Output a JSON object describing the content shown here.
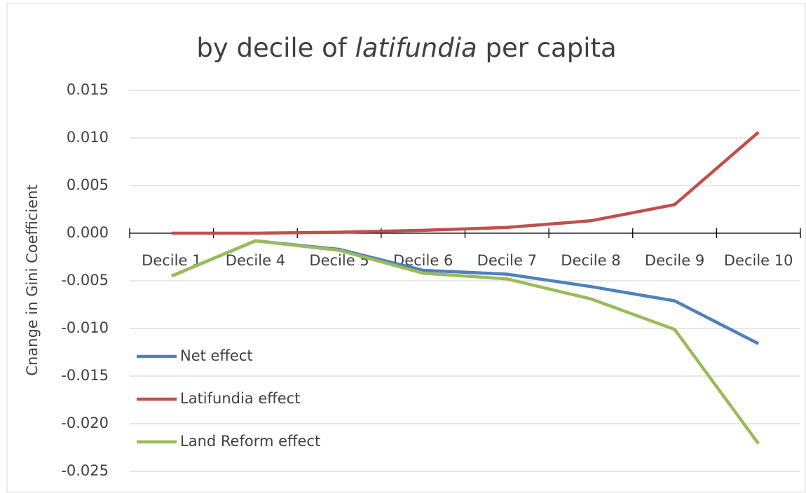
{
  "chart_data": {
    "type": "line",
    "title": [
      "by decile of ",
      "latifundia",
      " per capita"
    ],
    "y_label": "Cnange in Gini Coefficient",
    "categories": [
      "Decile 1",
      "Decile 4",
      "Decile 5",
      "Decile 6",
      "Decile 7",
      "Decile 8",
      "Decile 9",
      "Decile 10"
    ],
    "series": [
      {
        "name": "Net effect",
        "color": "#4f81bd",
        "values": [
          -0.0045,
          -0.0008,
          -0.0017,
          -0.0039,
          -0.0043,
          -0.0056,
          -0.0071,
          -0.0116
        ]
      },
      {
        "name": "Latifundia effect",
        "color": "#c0504d",
        "values": [
          0,
          0,
          0.0001,
          0.0003,
          0.0006,
          0.0013,
          0.003,
          0.0106
        ]
      },
      {
        "name": "Land Reform effect",
        "color": "#9bbb59",
        "values": [
          -0.0045,
          -0.0008,
          -0.0018,
          -0.0042,
          -0.0048,
          -0.0069,
          -0.0101,
          -0.0221
        ]
      }
    ],
    "ylim": [
      -0.025,
      0.015
    ],
    "yticks": [
      {
        "value": -0.025,
        "label": "-0.025"
      },
      {
        "value": -0.02,
        "label": "-0.020"
      },
      {
        "value": -0.015,
        "label": "-0.015"
      },
      {
        "value": -0.01,
        "label": "-0.010"
      },
      {
        "value": -0.005,
        "label": "-0.005"
      },
      {
        "value": 0,
        "label": "0.000"
      },
      {
        "value": 0.005,
        "label": "0.005"
      },
      {
        "value": 0.01,
        "label": "0.010"
      },
      {
        "value": 0.015,
        "label": "0.015"
      }
    ],
    "grid": true,
    "legend": "lower left"
  }
}
